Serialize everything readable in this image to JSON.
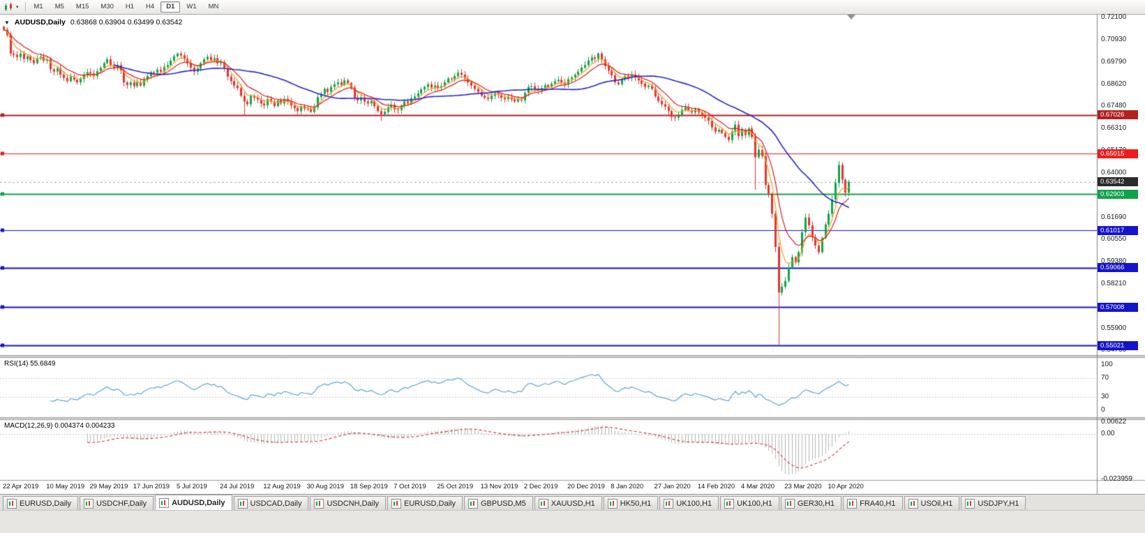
{
  "toolbar": {
    "timeframes": [
      "M1",
      "M5",
      "M15",
      "M30",
      "H1",
      "H4",
      "D1",
      "W1",
      "MN"
    ],
    "active": "D1",
    "chart_type_icon": "candlestick-chart-icon"
  },
  "chart_header": {
    "symbol": "AUDUSD,Daily",
    "ohlc": "0.63868 0.63904 0.63499 0.63542"
  },
  "tabs": {
    "active_index": 2,
    "items": [
      "EURUSD,Daily",
      "USDCHF,Daily",
      "AUDUSD,Daily",
      "USDCAD,Daily",
      "USDCNH,Daily",
      "EURUSD,Daily",
      "GBPUSD,M5",
      "XAUUSD,H1",
      "HK50,H1",
      "UK100,H1",
      "UK100,H1",
      "GER30,H1",
      "FRA40,H1",
      "USOil,H1",
      "USDJPY,H1"
    ]
  },
  "chart_data": {
    "type": "candlestick",
    "symbol": "AUDUSD",
    "period": "Daily",
    "ohlc_readout": {
      "open": "0.63868",
      "high": "0.63904",
      "low": "0.63499",
      "close": "0.63542"
    },
    "price_range": [
      0.5452,
      0.7228
    ],
    "y_axis_ticks": [
      "0.72100",
      "0.70930",
      "0.69790",
      "0.68620",
      "0.67480",
      "0.66310",
      "0.65170",
      "0.64000",
      "0.62860",
      "0.61690",
      "0.60550",
      "0.59380",
      "0.58210",
      "0.57040",
      "0.55900",
      "0.54760"
    ],
    "x_axis_labels": [
      "22 Apr 2019",
      "10 May 2019",
      "29 May 2019",
      "17 Jun 2019",
      "5 Jul 2019",
      "24 Jul 2019",
      "12 Aug 2019",
      "30 Aug 2019",
      "18 Sep 2019",
      "7 Oct 2019",
      "25 Oct 2019",
      "13 Nov 2019",
      "2 Dec 2019",
      "20 Dec 2019",
      "8 Jan 2020",
      "27 Jan 2020",
      "14 Feb 2020",
      "4 Mar 2020",
      "23 Mar 2020",
      "10 Apr 2020"
    ],
    "h_lines": [
      {
        "price": 0.67026,
        "label": "0.67026",
        "color": "#b22020",
        "width": 2
      },
      {
        "price": 0.65015,
        "label": "0.65015",
        "color": "#ee1c1c",
        "width": 1
      },
      {
        "price": 0.63542,
        "label": "0.63542",
        "color": "#2b2b2b",
        "width": 1,
        "style": "current"
      },
      {
        "price": 0.62903,
        "label": "0.62903",
        "color": "#10a24a",
        "width": 2
      },
      {
        "price": 0.61017,
        "label": "0.61017",
        "color": "#1414cc",
        "width": 1
      },
      {
        "price": 0.59066,
        "label": "0.59066",
        "color": "#1414cc",
        "width": 2
      },
      {
        "price": 0.57008,
        "label": "0.57008",
        "color": "#1414cc",
        "width": 2
      },
      {
        "price": 0.55021,
        "label": "0.55021",
        "color": "#1414cc",
        "width": 2
      }
    ],
    "current_price": 0.63542,
    "candle_colors": {
      "up": "#0aa74c",
      "down": "#e8322e"
    },
    "overlays": [
      {
        "name": "ma-fast",
        "kind": "ema",
        "period": 5,
        "color": "#f7a11a"
      },
      {
        "name": "ma-mid",
        "kind": "ema",
        "period": 10,
        "color": "#e2191f"
      },
      {
        "name": "ma-slow",
        "kind": "sma",
        "period": 34,
        "color": "#2525cf"
      }
    ],
    "closes": [
      0.7146,
      0.7118,
      0.7022,
      0.7015,
      0.7004,
      0.7022,
      0.6993,
      0.7008,
      0.6988,
      0.6972,
      0.6995,
      0.7005,
      0.6985,
      0.6992,
      0.694,
      0.6928,
      0.6945,
      0.6912,
      0.6895,
      0.6878,
      0.6902,
      0.6885,
      0.6872,
      0.689,
      0.6912,
      0.6925,
      0.6918,
      0.6905,
      0.693,
      0.6948,
      0.6972,
      0.6992,
      0.6962,
      0.6948,
      0.6962,
      0.6935,
      0.6872,
      0.6858,
      0.6872,
      0.6852,
      0.6872,
      0.6855,
      0.6885,
      0.6905,
      0.6925,
      0.6922,
      0.6938,
      0.6928,
      0.6952,
      0.6962,
      0.6985,
      0.7008,
      0.7022,
      0.7012,
      0.6995,
      0.6972,
      0.6948,
      0.6928,
      0.6945,
      0.6972,
      0.6992,
      0.7005,
      0.6988,
      0.6998,
      0.6972,
      0.6978,
      0.6948,
      0.6902,
      0.6878,
      0.6855,
      0.6842,
      0.6802,
      0.6772,
      0.6758,
      0.6802,
      0.6792,
      0.6782,
      0.6762,
      0.6752,
      0.6785,
      0.6772,
      0.6748,
      0.6778,
      0.6762,
      0.6785,
      0.6772,
      0.6752,
      0.6738,
      0.6722,
      0.6748,
      0.6735,
      0.6732,
      0.6718,
      0.6742,
      0.6795,
      0.6812,
      0.6838,
      0.6822,
      0.6848,
      0.6862,
      0.6872,
      0.6858,
      0.6882,
      0.6868,
      0.6845,
      0.6792,
      0.6778,
      0.6792,
      0.6772,
      0.6762,
      0.6775,
      0.6748,
      0.6722,
      0.6705,
      0.6718,
      0.6742,
      0.6755,
      0.6732,
      0.6728,
      0.6752,
      0.6772,
      0.6762,
      0.6788,
      0.6798,
      0.6815,
      0.6835,
      0.6848,
      0.6862,
      0.6845,
      0.6855,
      0.6842,
      0.6852,
      0.6872,
      0.6892,
      0.6888,
      0.6905,
      0.6922,
      0.6912,
      0.6892,
      0.6872,
      0.6855,
      0.6838,
      0.6822,
      0.6802,
      0.6792,
      0.6785,
      0.6802,
      0.6815,
      0.6808,
      0.6792,
      0.6785,
      0.6795,
      0.6782,
      0.6772,
      0.6785,
      0.6778,
      0.6818,
      0.6848,
      0.6852,
      0.6838,
      0.6828,
      0.6842,
      0.6858,
      0.6848,
      0.6865,
      0.6878,
      0.6885,
      0.6872,
      0.6862,
      0.6888,
      0.6898,
      0.6912,
      0.6928,
      0.6948,
      0.6962,
      0.6985,
      0.7002,
      0.6995,
      0.7022,
      0.6992,
      0.6958,
      0.6932,
      0.6908,
      0.6872,
      0.6862,
      0.6888,
      0.6905,
      0.6895,
      0.6912,
      0.6898,
      0.6882,
      0.6865,
      0.6848,
      0.6855,
      0.6838,
      0.6798,
      0.6775,
      0.6758,
      0.6745,
      0.6722,
      0.6692,
      0.6688,
      0.6705,
      0.6728,
      0.6742,
      0.6725,
      0.6715,
      0.6732,
      0.6715,
      0.6702,
      0.6688,
      0.6672,
      0.6638,
      0.6615,
      0.6625,
      0.6608,
      0.6588,
      0.6572,
      0.6615,
      0.6652,
      0.6592,
      0.6625,
      0.6598,
      0.6632,
      0.6588,
      0.6482,
      0.6522,
      0.6488,
      0.6338,
      0.6292,
      0.6188,
      0.6015,
      0.5778,
      0.5808,
      0.5838,
      0.5908,
      0.5962,
      0.5935,
      0.5988,
      0.6092,
      0.6168,
      0.6128,
      0.6065,
      0.6022,
      0.5988,
      0.6062,
      0.6132,
      0.6188,
      0.6262,
      0.6348,
      0.6442,
      0.6365,
      0.6298,
      0.6354
    ],
    "wick_low_overrides": {
      "72": 0.67,
      "113": 0.6671,
      "225": 0.6313,
      "232": 0.5506
    },
    "indicators": [
      {
        "name": "RSI",
        "label": "RSI(14) 55.6849",
        "color": "#58a6d6",
        "axis": [
          "100",
          "70",
          "30",
          "0"
        ],
        "guides": [
          70,
          30
        ]
      },
      {
        "name": "MACD",
        "label": "MACD(12,26,9) 0.004374 0.004233",
        "hist_color": "#b4b4b4",
        "signal_color": "#d83030",
        "axis": [
          "0.00622",
          "0.00",
          "-0.023959"
        ]
      }
    ]
  }
}
